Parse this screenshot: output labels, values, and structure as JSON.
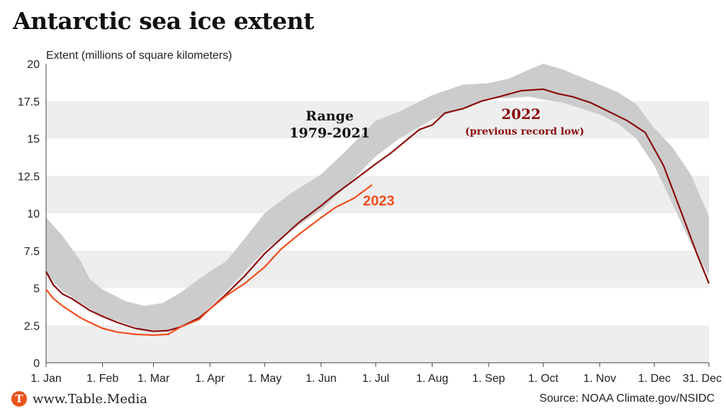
{
  "title": "Antarctic sea ice extent",
  "footer": {
    "brand_logo_letter": "T",
    "brand_url": "www.Table.Media",
    "source": "Source: NOAA Climate.gov/NSIDC"
  },
  "colors": {
    "band": "#eeeeee",
    "range_fill": "#cccccc",
    "series_2022": "#8b0c0c",
    "series_2023": "#f04e1e",
    "brand": "#e8541c"
  },
  "chart_data": {
    "type": "line",
    "ylabel": "Extent (millions of square kilometers)",
    "ylim": [
      0,
      20
    ],
    "yticks": [
      0,
      2.5,
      5,
      7.5,
      10,
      12.5,
      15,
      17.5,
      20
    ],
    "ytick_labels": [
      "0",
      "2.5",
      "5",
      "7.5",
      "10",
      "12.5",
      "15",
      "17.5",
      "20"
    ],
    "xlim": [
      1,
      365
    ],
    "xticks": [
      1,
      32,
      60,
      91,
      121,
      152,
      182,
      213,
      244,
      274,
      305,
      335,
      365
    ],
    "xtick_labels": [
      "1. Jan",
      "1. Feb",
      "1. Mar",
      "1. Apr",
      "1. May",
      "1. Jun",
      "1. Jul",
      "1. Aug",
      "1. Sep",
      "1. Oct",
      "1. Nov",
      "1. Dec",
      "31. Dec"
    ],
    "range": {
      "label_line1": "Range",
      "label_line2": "1979-2021",
      "upper": [
        [
          1,
          9.7
        ],
        [
          10,
          8.5
        ],
        [
          20,
          6.8
        ],
        [
          25,
          5.6
        ],
        [
          32,
          4.9
        ],
        [
          45,
          4.1
        ],
        [
          55,
          3.8
        ],
        [
          65,
          4.0
        ],
        [
          75,
          4.7
        ],
        [
          85,
          5.6
        ],
        [
          91,
          6.1
        ],
        [
          100,
          6.8
        ],
        [
          110,
          8.3
        ],
        [
          121,
          10.0
        ],
        [
          135,
          11.3
        ],
        [
          152,
          12.6
        ],
        [
          165,
          14.1
        ],
        [
          182,
          16.2
        ],
        [
          195,
          16.8
        ],
        [
          213,
          17.9
        ],
        [
          230,
          18.6
        ],
        [
          244,
          18.7
        ],
        [
          255,
          19.0
        ],
        [
          266,
          19.6
        ],
        [
          274,
          20.0
        ],
        [
          285,
          19.6
        ],
        [
          295,
          19.1
        ],
        [
          305,
          18.6
        ],
        [
          315,
          18.1
        ],
        [
          325,
          17.3
        ],
        [
          335,
          15.7
        ],
        [
          345,
          14.4
        ],
        [
          355,
          12.6
        ],
        [
          365,
          9.8
        ]
      ],
      "lower": [
        [
          1,
          6.0
        ],
        [
          10,
          4.8
        ],
        [
          20,
          4.0
        ],
        [
          32,
          3.1
        ],
        [
          45,
          2.6
        ],
        [
          55,
          2.2
        ],
        [
          65,
          2.1
        ],
        [
          75,
          2.4
        ],
        [
          85,
          3.0
        ],
        [
          91,
          3.7
        ],
        [
          100,
          4.8
        ],
        [
          110,
          6.1
        ],
        [
          121,
          7.5
        ],
        [
          135,
          8.8
        ],
        [
          152,
          10.2
        ],
        [
          165,
          11.7
        ],
        [
          182,
          13.8
        ],
        [
          195,
          15.0
        ],
        [
          213,
          16.3
        ],
        [
          230,
          17.0
        ],
        [
          244,
          17.7
        ],
        [
          255,
          17.7
        ],
        [
          266,
          17.8
        ],
        [
          274,
          17.6
        ],
        [
          285,
          17.4
        ],
        [
          295,
          17.0
        ],
        [
          305,
          16.6
        ],
        [
          315,
          16.0
        ],
        [
          325,
          15.0
        ],
        [
          335,
          13.2
        ],
        [
          345,
          10.6
        ],
        [
          355,
          8.0
        ],
        [
          365,
          5.8
        ]
      ]
    },
    "series": [
      {
        "name": "2022",
        "note": "(previous record low)",
        "points": [
          [
            1,
            6.1
          ],
          [
            5,
            5.2
          ],
          [
            10,
            4.6
          ],
          [
            15,
            4.3
          ],
          [
            20,
            3.9
          ],
          [
            25,
            3.5
          ],
          [
            32,
            3.1
          ],
          [
            40,
            2.7
          ],
          [
            50,
            2.3
          ],
          [
            60,
            2.1
          ],
          [
            68,
            2.15
          ],
          [
            75,
            2.4
          ],
          [
            85,
            3.0
          ],
          [
            91,
            3.6
          ],
          [
            100,
            4.6
          ],
          [
            110,
            5.8
          ],
          [
            121,
            7.3
          ],
          [
            130,
            8.3
          ],
          [
            140,
            9.4
          ],
          [
            152,
            10.5
          ],
          [
            160,
            11.3
          ],
          [
            170,
            12.2
          ],
          [
            182,
            13.3
          ],
          [
            190,
            14.0
          ],
          [
            200,
            15.0
          ],
          [
            206,
            15.6
          ],
          [
            213,
            15.9
          ],
          [
            220,
            16.7
          ],
          [
            230,
            17.0
          ],
          [
            240,
            17.5
          ],
          [
            250,
            17.8
          ],
          [
            262,
            18.2
          ],
          [
            274,
            18.3
          ],
          [
            282,
            18.0
          ],
          [
            290,
            17.8
          ],
          [
            300,
            17.4
          ],
          [
            310,
            16.8
          ],
          [
            320,
            16.2
          ],
          [
            330,
            15.4
          ],
          [
            340,
            13.2
          ],
          [
            350,
            10.0
          ],
          [
            358,
            7.4
          ],
          [
            365,
            5.3
          ]
        ]
      },
      {
        "name": "2023",
        "points": [
          [
            1,
            4.9
          ],
          [
            5,
            4.3
          ],
          [
            10,
            3.8
          ],
          [
            15,
            3.4
          ],
          [
            20,
            3.0
          ],
          [
            25,
            2.7
          ],
          [
            32,
            2.3
          ],
          [
            40,
            2.05
          ],
          [
            50,
            1.9
          ],
          [
            60,
            1.85
          ],
          [
            68,
            1.9
          ],
          [
            75,
            2.4
          ],
          [
            85,
            2.9
          ],
          [
            91,
            3.6
          ],
          [
            100,
            4.5
          ],
          [
            110,
            5.3
          ],
          [
            121,
            6.4
          ],
          [
            130,
            7.6
          ],
          [
            140,
            8.6
          ],
          [
            152,
            9.7
          ],
          [
            160,
            10.4
          ],
          [
            170,
            11.0
          ],
          [
            180,
            11.9
          ]
        ]
      }
    ]
  }
}
